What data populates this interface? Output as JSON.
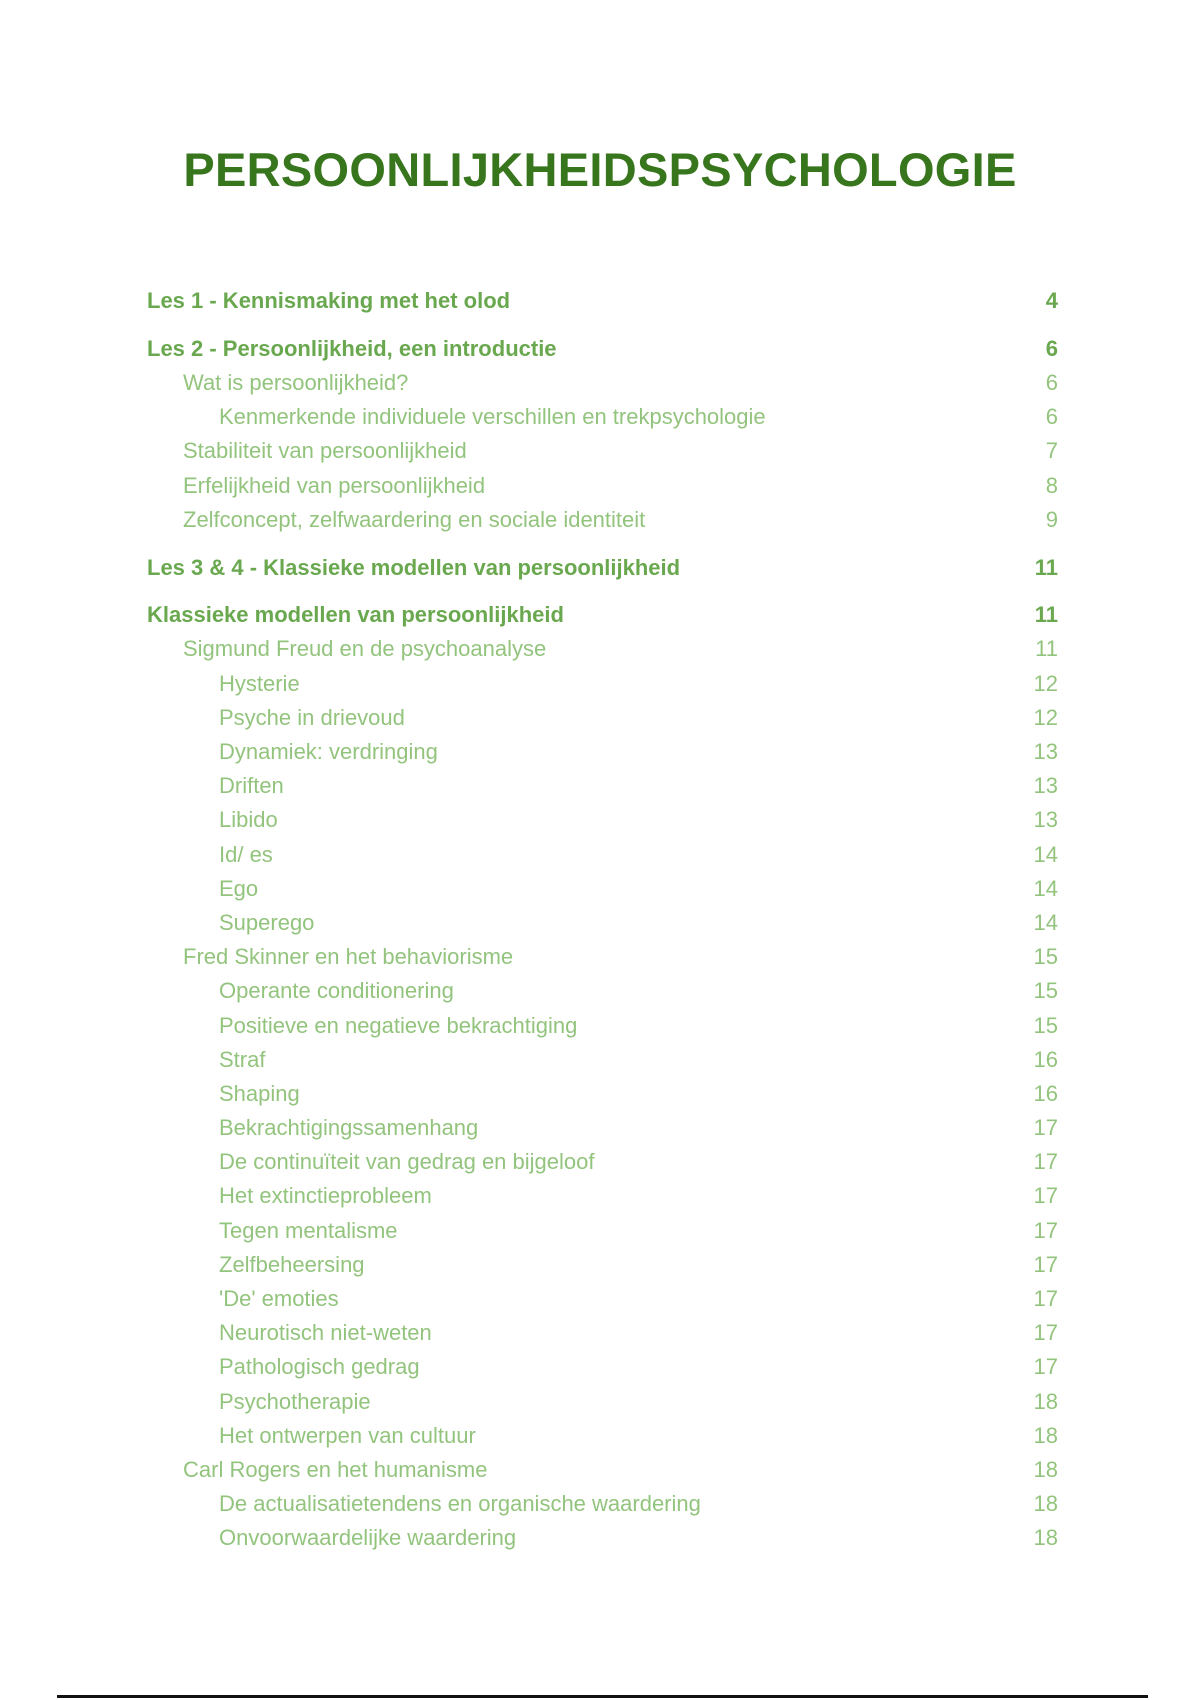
{
  "title": "PERSOONLIJKHEIDSPSYCHOLOGIE",
  "colors": {
    "title": "#38761d",
    "heading": "#6aa84f",
    "entry": "#93c47d"
  },
  "toc": [
    {
      "level": 1,
      "text": "Les 1 - Kennismaking met het olod",
      "page": "4"
    },
    {
      "level": 1,
      "text": "Les 2 - Persoonlijkheid, een introductie",
      "page": "6"
    },
    {
      "level": 2,
      "text": "Wat is persoonlijkheid?",
      "page": "6"
    },
    {
      "level": 3,
      "text": "Kenmerkende individuele verschillen en trekpsychologie",
      "page": "6"
    },
    {
      "level": 2,
      "text": "Stabiliteit van persoonlijkheid",
      "page": "7"
    },
    {
      "level": 2,
      "text": "Erfelijkheid van persoonlijkheid",
      "page": "8"
    },
    {
      "level": 2,
      "text": "Zelfconcept, zelfwaardering en sociale identiteit",
      "page": "9"
    },
    {
      "level": 1,
      "text": "Les 3 & 4 - Klassieke modellen van persoonlijkheid",
      "page": "11"
    },
    {
      "level": 1,
      "text": "Klassieke modellen van persoonlijkheid",
      "page": "11"
    },
    {
      "level": 2,
      "text": "Sigmund Freud en de psychoanalyse",
      "page": "11"
    },
    {
      "level": 3,
      "text": "Hysterie",
      "page": "12"
    },
    {
      "level": 3,
      "text": "Psyche in drievoud",
      "page": "12"
    },
    {
      "level": 3,
      "text": "Dynamiek: verdringing",
      "page": "13"
    },
    {
      "level": 3,
      "text": "Driften",
      "page": "13"
    },
    {
      "level": 3,
      "text": "Libido",
      "page": "13"
    },
    {
      "level": 3,
      "text": "Id/ es",
      "page": "14"
    },
    {
      "level": 3,
      "text": "Ego",
      "page": "14"
    },
    {
      "level": 3,
      "text": "Superego",
      "page": "14"
    },
    {
      "level": 2,
      "text": "Fred Skinner en het behaviorisme",
      "page": "15"
    },
    {
      "level": 3,
      "text": "Operante conditionering",
      "page": "15"
    },
    {
      "level": 3,
      "text": "Positieve en negatieve bekrachtiging",
      "page": "15"
    },
    {
      "level": 3,
      "text": "Straf",
      "page": "16"
    },
    {
      "level": 3,
      "text": "Shaping",
      "page": "16"
    },
    {
      "level": 3,
      "text": "Bekrachtigingssamenhang",
      "page": "17"
    },
    {
      "level": 3,
      "text": "De continuïteit van gedrag en bijgeloof",
      "page": "17"
    },
    {
      "level": 3,
      "text": "Het extinctieprobleem",
      "page": "17"
    },
    {
      "level": 3,
      "text": "Tegen mentalisme",
      "page": "17"
    },
    {
      "level": 3,
      "text": "Zelfbeheersing",
      "page": "17"
    },
    {
      "level": 3,
      "text": "'De' emoties",
      "page": "17"
    },
    {
      "level": 3,
      "text": "Neurotisch niet-weten",
      "page": "17"
    },
    {
      "level": 3,
      "text": "Pathologisch gedrag",
      "page": "17"
    },
    {
      "level": 3,
      "text": "Psychotherapie",
      "page": "18"
    },
    {
      "level": 3,
      "text": "Het ontwerpen van cultuur",
      "page": "18"
    },
    {
      "level": 2,
      "text": "Carl Rogers en het humanisme",
      "page": "18"
    },
    {
      "level": 3,
      "text": "De actualisatietendens en organische waardering",
      "page": "18"
    },
    {
      "level": 3,
      "text": "Onvoorwaardelijke waardering",
      "page": "18"
    }
  ]
}
